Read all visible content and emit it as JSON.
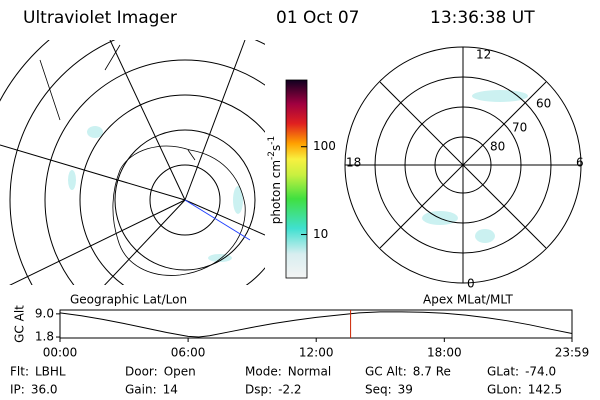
{
  "header": {
    "title": "Ultraviolet Imager",
    "date": "01 Oct 07",
    "time": "13:36:38 UT"
  },
  "left_map": {
    "label": "Geographic Lat/Lon"
  },
  "right_map": {
    "label": "Apex MLat/MLT",
    "mlt_labels": {
      "top": "12",
      "left": "18",
      "right": "6",
      "bottom": "0"
    },
    "lat_labels": [
      "60",
      "70",
      "80"
    ]
  },
  "colorbar": {
    "label": [
      "photon cm",
      "-2",
      "s",
      "-1"
    ],
    "lim": [
      3.2,
      575
    ],
    "log": true,
    "ticks": [
      10,
      100
    ]
  },
  "chart_data": {
    "type": "line",
    "ylabel": "GC Alt",
    "x": [
      0,
      1,
      2,
      3,
      4,
      5,
      6,
      6.5,
      7,
      8,
      9,
      10,
      11,
      12,
      13,
      14,
      15,
      16,
      17,
      18,
      19,
      20,
      21,
      22,
      23,
      23.98
    ],
    "values": [
      9.3,
      8.4,
      7.3,
      6.0,
      4.6,
      3.2,
      2.0,
      1.8,
      2.2,
      3.5,
      4.8,
      6.0,
      7.0,
      7.9,
      8.6,
      9.3,
      9.6,
      9.6,
      9.5,
      9.2,
      8.6,
      7.8,
      6.8,
      5.6,
      4.2,
      2.9
    ],
    "color": "#000000",
    "marker_x": 13.61,
    "marker_color": "#cc2200",
    "xlim": [
      0,
      23.98
    ],
    "xticks": [
      {
        "value": 0,
        "label": "00:00"
      },
      {
        "value": 6,
        "label": "06:00"
      },
      {
        "value": 12,
        "label": "12:00"
      },
      {
        "value": 18,
        "label": "18:00"
      },
      {
        "value": 23.98,
        "label": "23:59"
      }
    ],
    "ylim": [
      1.5,
      10.2
    ],
    "yticks": [
      {
        "value": 9.0,
        "label": "9.0"
      },
      {
        "value": 1.8,
        "label": "1.8"
      }
    ]
  },
  "footer": [
    [
      [
        "Flt:",
        "LBHL"
      ],
      [
        "Door:",
        "Open"
      ],
      [
        "Mode:",
        "Normal"
      ],
      [
        "GC Alt:",
        "8.7 Re"
      ],
      [
        "GLat:",
        "-74.0"
      ]
    ],
    [
      [
        "IP:",
        "36.0"
      ],
      [
        "Gain:",
        "14"
      ],
      [
        "Dsp:",
        "-2.2"
      ],
      [
        "Seq:",
        "39"
      ],
      [
        "GLon:",
        "142.5"
      ]
    ]
  ]
}
